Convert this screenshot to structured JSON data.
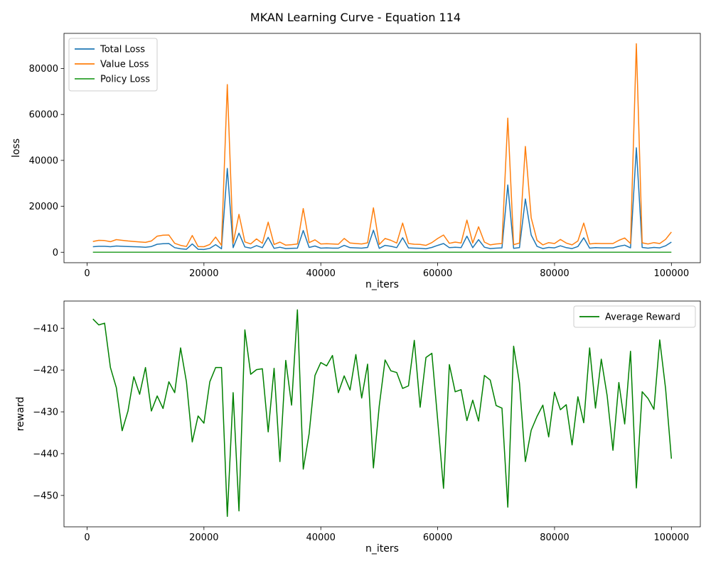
{
  "figure_title": "MKAN Learning Curve - Equation 114",
  "chart_data": [
    {
      "type": "line",
      "xlabel": "n_iters",
      "ylabel": "loss",
      "xlim": [
        -3950,
        104950
      ],
      "ylim": [
        -4550,
        95300
      ],
      "x_ticks": [
        0,
        20000,
        40000,
        60000,
        80000,
        100000
      ],
      "y_ticks": [
        0,
        20000,
        40000,
        60000,
        80000
      ],
      "legend_position": "upper-left",
      "grid": false,
      "series": [
        {
          "name": "Total Loss",
          "color": "#1f77b4",
          "x": [
            1000,
            2000,
            3000,
            4000,
            5000,
            6000,
            7000,
            8000,
            9000,
            10000,
            11000,
            12000,
            13000,
            14000,
            15000,
            16000,
            17000,
            18000,
            19000,
            20000,
            21000,
            22000,
            23000,
            24000,
            25000,
            26000,
            27000,
            28000,
            29000,
            30000,
            31000,
            32000,
            33000,
            34000,
            35000,
            36000,
            37000,
            38000,
            39000,
            40000,
            41000,
            42000,
            43000,
            44000,
            45000,
            46000,
            47000,
            48000,
            49000,
            50000,
            51000,
            52000,
            53000,
            54000,
            55000,
            56000,
            57000,
            58000,
            59000,
            60000,
            61000,
            62000,
            63000,
            64000,
            65000,
            66000,
            67000,
            68000,
            69000,
            70000,
            71000,
            72000,
            73000,
            74000,
            75000,
            76000,
            77000,
            78000,
            79000,
            80000,
            81000,
            82000,
            83000,
            84000,
            85000,
            86000,
            87000,
            88000,
            89000,
            90000,
            91000,
            92000,
            93000,
            94000,
            95000,
            96000,
            97000,
            98000,
            99000,
            100000
          ],
          "values": [
            2400,
            2600,
            2600,
            2400,
            2700,
            2600,
            2500,
            2400,
            2300,
            2200,
            2500,
            3500,
            3700,
            3800,
            2000,
            1500,
            1300,
            3600,
            1300,
            1200,
            1700,
            3300,
            1500,
            36500,
            2000,
            8300,
            2300,
            1800,
            2900,
            2000,
            6500,
            1700,
            2200,
            1600,
            1700,
            1800,
            9500,
            2100,
            2700,
            1800,
            1900,
            1800,
            1800,
            3000,
            2000,
            1900,
            1800,
            2100,
            9600,
            1700,
            3000,
            2600,
            2000,
            6300,
            1900,
            1800,
            1700,
            1500,
            2100,
            3000,
            3800,
            2000,
            2200,
            2000,
            7000,
            2000,
            5500,
            2200,
            1600,
            1800,
            1900,
            29300,
            1700,
            2000,
            23200,
            7500,
            2600,
            1600,
            2100,
            1900,
            2800,
            2000,
            1600,
            2500,
            6300,
            1800,
            2000,
            1900,
            1900,
            1900,
            2600,
            3100,
            1900,
            45500,
            2100,
            1800,
            2100,
            1900,
            2800,
            4400
          ]
        },
        {
          "name": "Value Loss",
          "color": "#ff7f0e",
          "x": [
            1000,
            2000,
            3000,
            4000,
            5000,
            6000,
            7000,
            8000,
            9000,
            10000,
            11000,
            12000,
            13000,
            14000,
            15000,
            16000,
            17000,
            18000,
            19000,
            20000,
            21000,
            22000,
            23000,
            24000,
            25000,
            26000,
            27000,
            28000,
            29000,
            30000,
            31000,
            32000,
            33000,
            34000,
            35000,
            36000,
            37000,
            38000,
            39000,
            40000,
            41000,
            42000,
            43000,
            44000,
            45000,
            46000,
            47000,
            48000,
            49000,
            50000,
            51000,
            52000,
            53000,
            54000,
            55000,
            56000,
            57000,
            58000,
            59000,
            60000,
            61000,
            62000,
            63000,
            64000,
            65000,
            66000,
            67000,
            68000,
            69000,
            70000,
            71000,
            72000,
            73000,
            74000,
            75000,
            76000,
            77000,
            78000,
            79000,
            80000,
            81000,
            82000,
            83000,
            84000,
            85000,
            86000,
            87000,
            88000,
            89000,
            90000,
            91000,
            92000,
            93000,
            94000,
            95000,
            96000,
            97000,
            98000,
            99000,
            100000
          ],
          "values": [
            4700,
            5200,
            5100,
            4600,
            5500,
            5200,
            4900,
            4700,
            4500,
            4300,
            4900,
            7000,
            7400,
            7500,
            3900,
            3000,
            2500,
            7300,
            2500,
            2400,
            3400,
            6600,
            3000,
            73000,
            3900,
            16500,
            4500,
            3600,
            5800,
            3900,
            13100,
            3400,
            4400,
            3100,
            3300,
            3600,
            19000,
            4200,
            5400,
            3600,
            3700,
            3600,
            3500,
            6000,
            4000,
            3800,
            3600,
            4100,
            19300,
            3400,
            6000,
            5200,
            4000,
            12700,
            3800,
            3500,
            3400,
            3000,
            4200,
            6000,
            7500,
            3900,
            4400,
            4000,
            14000,
            4000,
            11100,
            4400,
            3200,
            3600,
            3800,
            58400,
            3300,
            4000,
            46100,
            15000,
            5200,
            3200,
            4200,
            3800,
            5600,
            4000,
            3200,
            4900,
            12700,
            3600,
            3900,
            3800,
            3800,
            3800,
            5200,
            6200,
            3800,
            90800,
            4100,
            3600,
            4200,
            3800,
            5600,
            8800
          ]
        },
        {
          "name": "Policy Loss",
          "color": "#2ca02c",
          "x": [
            1000,
            2000,
            3000,
            4000,
            5000,
            6000,
            7000,
            8000,
            9000,
            10000,
            11000,
            12000,
            13000,
            14000,
            15000,
            16000,
            17000,
            18000,
            19000,
            20000,
            21000,
            22000,
            23000,
            24000,
            25000,
            26000,
            27000,
            28000,
            29000,
            30000,
            31000,
            32000,
            33000,
            34000,
            35000,
            36000,
            37000,
            38000,
            39000,
            40000,
            41000,
            42000,
            43000,
            44000,
            45000,
            46000,
            47000,
            48000,
            49000,
            50000,
            51000,
            52000,
            53000,
            54000,
            55000,
            56000,
            57000,
            58000,
            59000,
            60000,
            61000,
            62000,
            63000,
            64000,
            65000,
            66000,
            67000,
            68000,
            69000,
            70000,
            71000,
            72000,
            73000,
            74000,
            75000,
            76000,
            77000,
            78000,
            79000,
            80000,
            81000,
            82000,
            83000,
            84000,
            85000,
            86000,
            87000,
            88000,
            89000,
            90000,
            91000,
            92000,
            93000,
            94000,
            95000,
            96000,
            97000,
            98000,
            99000,
            100000
          ],
          "values": [
            5,
            5,
            5,
            5,
            5,
            5,
            5,
            5,
            5,
            5,
            5,
            5,
            5,
            5,
            5,
            5,
            5,
            5,
            5,
            5,
            5,
            5,
            5,
            5,
            5,
            5,
            5,
            5,
            5,
            5,
            5,
            5,
            5,
            5,
            5,
            5,
            5,
            5,
            5,
            5,
            5,
            5,
            5,
            5,
            5,
            5,
            5,
            5,
            5,
            5,
            5,
            5,
            5,
            5,
            5,
            5,
            5,
            5,
            5,
            5,
            5,
            5,
            5,
            5,
            5,
            5,
            5,
            5,
            5,
            5,
            5,
            5,
            5,
            5,
            5,
            5,
            5,
            5,
            5,
            5,
            5,
            5,
            5,
            5,
            5,
            5,
            5,
            5,
            5,
            5,
            5,
            5,
            5,
            5,
            5,
            5,
            5,
            5,
            5,
            5
          ]
        }
      ]
    },
    {
      "type": "line",
      "xlabel": "n_iters",
      "ylabel": "reward",
      "xlim": [
        -3950,
        104950
      ],
      "ylim": [
        -457.5,
        -403.5
      ],
      "x_ticks": [
        0,
        20000,
        40000,
        60000,
        80000,
        100000
      ],
      "y_ticks": [
        -410,
        -420,
        -430,
        -440,
        -450
      ],
      "legend_position": "upper-right",
      "grid": false,
      "series": [
        {
          "name": "Average Reward",
          "color": "#008000",
          "x": [
            1000,
            2000,
            3000,
            4000,
            5000,
            6000,
            7000,
            8000,
            9000,
            10000,
            11000,
            12000,
            13000,
            14000,
            15000,
            16000,
            17000,
            18000,
            19000,
            20000,
            21000,
            22000,
            23000,
            24000,
            25000,
            26000,
            27000,
            28000,
            29000,
            30000,
            31000,
            32000,
            33000,
            34000,
            35000,
            36000,
            37000,
            38000,
            39000,
            40000,
            41000,
            42000,
            43000,
            44000,
            45000,
            46000,
            47000,
            48000,
            49000,
            50000,
            51000,
            52000,
            53000,
            54000,
            55000,
            56000,
            57000,
            58000,
            59000,
            60000,
            61000,
            62000,
            63000,
            64000,
            65000,
            66000,
            67000,
            68000,
            69000,
            70000,
            71000,
            72000,
            73000,
            74000,
            75000,
            76000,
            77000,
            78000,
            79000,
            80000,
            81000,
            82000,
            83000,
            84000,
            85000,
            86000,
            87000,
            88000,
            89000,
            90000,
            91000,
            92000,
            93000,
            94000,
            95000,
            96000,
            97000,
            98000,
            99000,
            100000
          ],
          "values": [
            -407.8,
            -409.2,
            -408.8,
            -419.4,
            -424.2,
            -434.5,
            -429.8,
            -421.6,
            -425.8,
            -419.4,
            -429.8,
            -426.2,
            -429.2,
            -422.8,
            -425.4,
            -414.7,
            -422.8,
            -437.2,
            -431.0,
            -432.7,
            -422.8,
            -419.4,
            -419.4,
            -455.0,
            -425.4,
            -453.7,
            -410.4,
            -421.0,
            -419.9,
            -419.7,
            -434.8,
            -419.6,
            -441.9,
            -417.7,
            -428.4,
            -405.6,
            -443.7,
            -435.2,
            -421.3,
            -418.2,
            -419.0,
            -416.5,
            -425.4,
            -421.4,
            -424.8,
            -416.3,
            -426.7,
            -418.6,
            -443.4,
            -428.6,
            -417.6,
            -420.2,
            -420.6,
            -424.4,
            -423.8,
            -412.9,
            -428.9,
            -417.0,
            -416.0,
            -432.0,
            -448.3,
            -418.7,
            -425.2,
            -424.7,
            -432.1,
            -427.2,
            -432.2,
            -421.3,
            -422.4,
            -428.5,
            -429.1,
            -452.8,
            -414.3,
            -423.1,
            -441.9,
            -434.4,
            -431.1,
            -428.4,
            -436.0,
            -425.3,
            -429.5,
            -428.3,
            -437.9,
            -426.4,
            -432.6,
            -414.7,
            -429.1,
            -417.4,
            -426.1,
            -439.2,
            -423.0,
            -432.9,
            -415.5,
            -448.2,
            -425.2,
            -426.8,
            -429.4,
            -412.8,
            -424.4,
            -441.2
          ]
        }
      ]
    }
  ]
}
